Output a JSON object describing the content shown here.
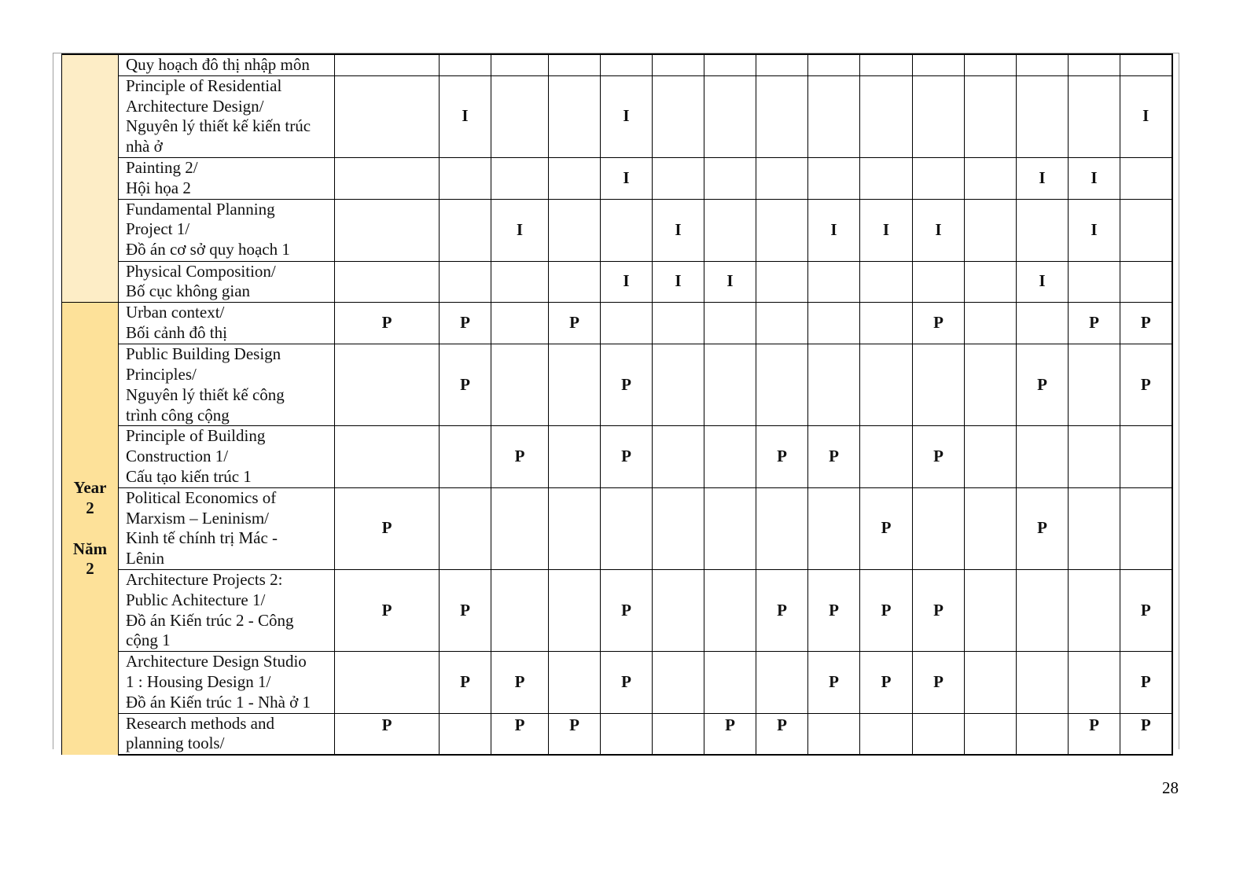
{
  "year_groups": [
    {
      "label": "",
      "color": "#fdedc6"
    },
    {
      "label": "Year\n2\n\nNăm\n2",
      "color": "#fde199"
    }
  ],
  "rows": [
    {
      "group": 0,
      "course": "Quy hoạch đô thị nhập môn",
      "marks": [
        "",
        "",
        "",
        "",
        "",
        "",
        "",
        "",
        "",
        "",
        "",
        "",
        "",
        "",
        ""
      ]
    },
    {
      "group": 0,
      "course": "Principle of Residential\nArchitecture Design/\nNguyên lý thiết kế kiến trúc\nnhà ở",
      "marks": [
        "",
        "I",
        "",
        "",
        "I",
        "",
        "",
        "",
        "",
        "",
        "",
        "",
        "",
        "",
        "I"
      ]
    },
    {
      "group": 0,
      "course": "Painting 2/\nHội họa 2",
      "marks": [
        "",
        "",
        "",
        "",
        "I",
        "",
        "",
        "",
        "",
        "",
        "",
        "",
        "I",
        "I",
        ""
      ]
    },
    {
      "group": 0,
      "course": "Fundamental Planning\nProject 1/\nĐồ án cơ sở quy hoạch 1",
      "marks": [
        "",
        "",
        "I",
        "",
        "",
        "I",
        "",
        "",
        "I",
        "I",
        "I",
        "",
        "",
        "I",
        ""
      ]
    },
    {
      "group": 0,
      "course": "Physical Composition/\nBố cục không gian",
      "marks": [
        "",
        "",
        "",
        "",
        "I",
        "I",
        "I",
        "",
        "",
        "",
        "",
        "",
        "I",
        "",
        ""
      ]
    },
    {
      "group": 1,
      "course": "Urban context/\nBối cảnh đô thị",
      "marks": [
        "P",
        "P",
        "",
        "P",
        "",
        "",
        "",
        "",
        "",
        "",
        "P",
        "",
        "",
        "P",
        "P"
      ]
    },
    {
      "group": 1,
      "course": "Public Building Design\nPrinciples/\nNguyên lý thiết kế công\ntrình công cộng",
      "marks": [
        "",
        "P",
        "",
        "",
        "P",
        "",
        "",
        "",
        "",
        "",
        "",
        "",
        "P",
        "",
        "P"
      ]
    },
    {
      "group": 1,
      "course": "Principle of Building\nConstruction 1/\nCấu tạo kiến trúc 1",
      "marks": [
        "",
        "",
        "P",
        "",
        "P",
        "",
        "",
        "P",
        "P",
        "",
        "P",
        "",
        "",
        "",
        ""
      ]
    },
    {
      "group": 1,
      "course": "Political Economics of\nMarxism – Leninism/\nKinh tế chính trị Mác -\nLênin",
      "marks": [
        "P",
        "",
        "",
        "",
        "",
        "",
        "",
        "",
        "",
        "P",
        "",
        "",
        "P",
        "",
        ""
      ]
    },
    {
      "group": 1,
      "course": "Architecture Projects 2:\nPublic Achitecture 1/\nĐồ án Kiến trúc 2 - Công\ncộng 1",
      "marks": [
        "P",
        "P",
        "",
        "",
        "P",
        "",
        "",
        "P",
        "P",
        "P",
        "P",
        "",
        "",
        "",
        "P"
      ]
    },
    {
      "group": 1,
      "course": "Architecture Design Studio\n1 : Housing Design 1/\nĐồ án Kiến trúc 1 - Nhà ở 1",
      "marks": [
        "",
        "P",
        "P",
        "",
        "P",
        "",
        "",
        "",
        "P",
        "P",
        "P",
        "",
        "",
        "",
        "P"
      ]
    },
    {
      "group": 1,
      "course": "Research methods and\nplanning tools/",
      "marks": [
        "P",
        "",
        "P",
        "P",
        "",
        "",
        "P",
        "P",
        "",
        "",
        "",
        "",
        "",
        "P",
        "P"
      ]
    }
  ],
  "page_number": "28"
}
